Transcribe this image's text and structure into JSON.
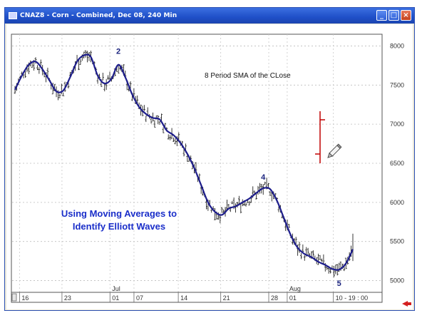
{
  "window": {
    "title": "CNAZ8 - Corn - Combined, Dec 08, 240 Min",
    "controls": [
      "_",
      "□",
      "×"
    ]
  },
  "chart_data": {
    "type": "line",
    "yaxis": {
      "ticks": [
        5000,
        5500,
        6000,
        6500,
        7000,
        7500,
        8000
      ],
      "tick_labels": [
        "5000",
        "5500",
        "6000",
        "6500",
        "7000",
        "7500",
        "8000"
      ],
      "range": [
        4850,
        8150
      ]
    },
    "xaxis": {
      "day_labels": [
        "16",
        "23",
        "01",
        "07",
        "14",
        "21",
        "28",
        "01",
        "10 - 19 : 00"
      ],
      "month_labels": [
        "Jul",
        "Aug"
      ]
    },
    "series": [
      {
        "values": [
          7440,
          7620,
          7760,
          7800,
          7700,
          7560,
          7420,
          7430,
          7600,
          7800,
          7880,
          7860,
          7620,
          7520,
          7580,
          7760,
          7600,
          7380,
          7220,
          7130,
          7080,
          7060,
          6920,
          6860,
          6760,
          6620,
          6440,
          6220,
          6000,
          5880,
          5840,
          5920,
          5950,
          6000,
          6050,
          6120,
          6180,
          6170,
          6020,
          5800,
          5580,
          5420,
          5340,
          5300,
          5240,
          5200,
          5150,
          5140,
          5220,
          5400
        ]
      }
    ],
    "annotations": [
      {
        "text": "2",
        "x_index": 15,
        "y": 7900
      },
      {
        "text": "4",
        "x_index": 36,
        "y": 6290
      },
      {
        "text": "5",
        "x_index": 47,
        "y": 4930
      }
    ]
  },
  "annotation_text": {
    "sma": "8 Period SMA of the CLose",
    "caption_line1": "Using Moving Averages to",
    "caption_line2": "Identify Elliott Waves"
  },
  "colors": {
    "sma_line": "#1e1e8c",
    "bars": "#222222",
    "marker": "#c00000",
    "caption": "#1a2ec9"
  }
}
